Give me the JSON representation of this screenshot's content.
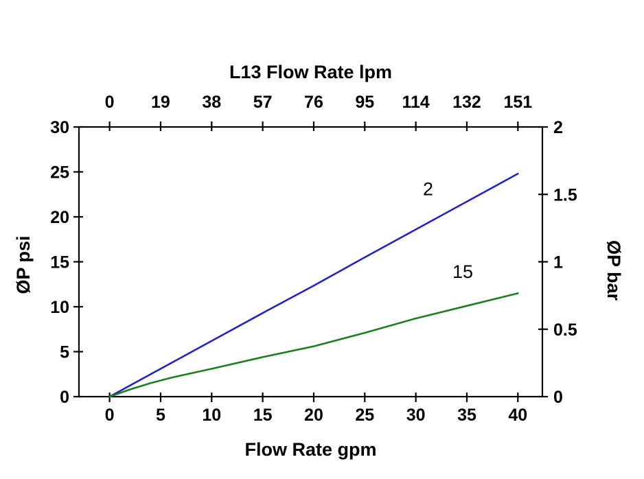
{
  "chart_data": {
    "type": "line",
    "title": "L13  Flow Rate lpm",
    "xlabel": "Flow Rate gpm",
    "ylabel_left": "ØP psi",
    "ylabel_right": "ØP bar",
    "xlim": [
      -3,
      42.4
    ],
    "ylim_left": [
      0,
      30
    ],
    "ylim_right": [
      0,
      2
    ],
    "x_ticks": [
      0,
      5,
      10,
      15,
      20,
      25,
      30,
      35,
      40
    ],
    "x_tick_labels": [
      "0",
      "5",
      "10",
      "15",
      "20",
      "25",
      "30",
      "35",
      "40"
    ],
    "x_top_labels": [
      "0",
      "19",
      "38",
      "57",
      "76",
      "95",
      "114",
      "132",
      "151"
    ],
    "y_left_ticks": [
      0,
      5,
      10,
      15,
      20,
      25,
      30
    ],
    "y_left_labels": [
      "0",
      "5",
      "10",
      "15",
      "20",
      "25",
      "30"
    ],
    "y_right_ticks": [
      0,
      0.5,
      1,
      1.5,
      2
    ],
    "y_right_labels": [
      "0",
      "0.5",
      "1",
      "1.5",
      "2"
    ],
    "grid": false,
    "legend": "inline-labels",
    "colors": {
      "axis": "#000000",
      "text": "#000000",
      "series_2": "#2222cc",
      "series_15": "#1e7d1e"
    },
    "series": [
      {
        "name": "2",
        "color": "#2222cc",
        "points": [
          [
            0,
            0
          ],
          [
            5,
            3.1
          ],
          [
            10,
            6.2
          ],
          [
            15,
            9.3
          ],
          [
            20,
            12.35
          ],
          [
            25,
            15.5
          ],
          [
            30,
            18.6
          ],
          [
            35,
            21.7
          ],
          [
            40,
            24.8
          ]
        ]
      },
      {
        "name": "15",
        "color": "#1e7d1e",
        "points": [
          [
            0,
            0
          ],
          [
            2,
            0.8
          ],
          [
            4,
            1.5
          ],
          [
            6,
            2.1
          ],
          [
            10,
            3.1
          ],
          [
            15,
            4.4
          ],
          [
            20,
            5.6
          ],
          [
            25,
            7.1
          ],
          [
            30,
            8.7
          ],
          [
            35,
            10.1
          ],
          [
            40,
            11.5
          ]
        ]
      }
    ],
    "annotations": [
      {
        "text": "2",
        "x": 31.2,
        "y": 22.4
      },
      {
        "text": "15",
        "x": 34.6,
        "y": 13.2
      }
    ]
  }
}
